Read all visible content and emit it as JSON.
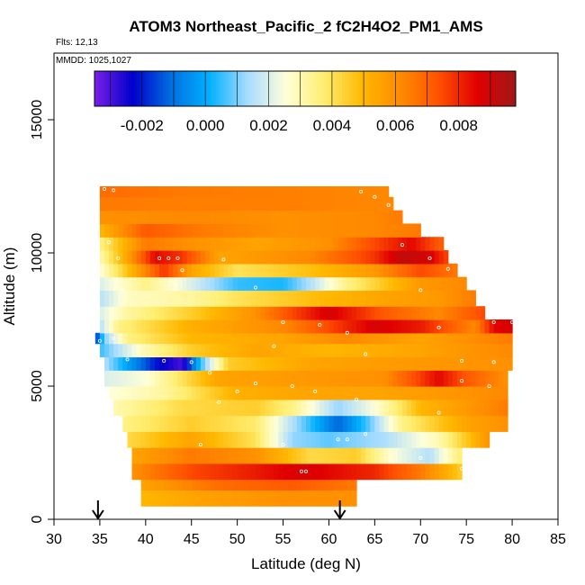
{
  "chart_data": {
    "type": "heatmap",
    "title": "ATOM3 Northeast_Pacific_2 fC2H4O2_PM1_AMS",
    "annotations": [
      "Flts: 12,13",
      "MMDD: 1025,1027"
    ],
    "xlabel": "Latitude (deg N)",
    "ylabel": "Altitude (m)",
    "xlim": [
      30,
      85
    ],
    "ylim": [
      0,
      17500
    ],
    "x_ticks": [
      "30",
      "35",
      "40",
      "45",
      "50",
      "55",
      "60",
      "65",
      "70",
      "75",
      "80",
      "85"
    ],
    "y_ticks": [
      "0",
      "5000",
      "10000",
      "15000"
    ],
    "colorbar": {
      "range": [
        -0.0035,
        0.0098
      ],
      "tick_values": [
        -0.002,
        0.0,
        0.002,
        0.004,
        0.006,
        0.008
      ],
      "tick_labels": [
        "-0.002",
        "0.000",
        "0.002",
        "0.004",
        "0.006",
        "0.008"
      ],
      "colors": [
        "#7a1fe8",
        "#0000cc",
        "#0070e0",
        "#00b0ff",
        "#a8dcff",
        "#ffffd8",
        "#ffee70",
        "#ffb800",
        "#ff8a00",
        "#ff5000",
        "#e00000",
        "#a01818"
      ]
    },
    "arrow_latitudes": [
      34.8,
      61.2
    ],
    "bands": [
      {
        "y0": 500,
        "y1": 1100,
        "x0": 39.5,
        "x1": 63,
        "keys": [
          [
            39.5,
            0.005
          ],
          [
            45,
            0.0055
          ],
          [
            55,
            0.006
          ],
          [
            63,
            0.006
          ]
        ]
      },
      {
        "y0": 1100,
        "y1": 1500,
        "x0": 39.5,
        "x1": 63,
        "keys": [
          [
            39.5,
            0.0055
          ],
          [
            48,
            0.0068
          ],
          [
            56,
            0.0072
          ],
          [
            63,
            0.0065
          ]
        ]
      },
      {
        "y0": 1500,
        "y1": 2100,
        "x0": 38.5,
        "x1": 74.5,
        "keys": [
          [
            38.5,
            0.006
          ],
          [
            45,
            0.0075
          ],
          [
            52,
            0.0082
          ],
          [
            57,
            0.0088
          ],
          [
            65,
            0.008
          ],
          [
            70,
            0.0065
          ],
          [
            74.5,
            0.0045
          ]
        ]
      },
      {
        "y0": 2100,
        "y1": 2700,
        "x0": 38.5,
        "x1": 74.5,
        "keys": [
          [
            38.5,
            0.0055
          ],
          [
            45,
            0.0065
          ],
          [
            52,
            0.006
          ],
          [
            58,
            0.0042
          ],
          [
            63,
            0.0045
          ],
          [
            67,
            0.0025
          ],
          [
            71,
            0.0015
          ],
          [
            74.5,
            0.0038
          ]
        ]
      },
      {
        "y0": 2700,
        "y1": 3300,
        "x0": 38.0,
        "x1": 77.5,
        "keys": [
          [
            38,
            0.0042
          ],
          [
            45,
            0.0055
          ],
          [
            52,
            0.004
          ],
          [
            56,
            0.0012
          ],
          [
            60,
            0.0008
          ],
          [
            66,
            0.0014
          ],
          [
            72,
            0.003
          ],
          [
            77.5,
            0.006
          ]
        ]
      },
      {
        "y0": 3300,
        "y1": 3900,
        "x0": 37.5,
        "x1": 79.5,
        "keys": [
          [
            37.5,
            0.0035
          ],
          [
            45,
            0.0045
          ],
          [
            52,
            0.0038
          ],
          [
            56,
            0.0015
          ],
          [
            61,
            -0.0012
          ],
          [
            64,
            0.0005
          ],
          [
            68,
            0.0035
          ],
          [
            75,
            0.0055
          ],
          [
            79.5,
            0.006
          ]
        ]
      },
      {
        "y0": 3900,
        "y1": 4500,
        "x0": 36.5,
        "x1": 79.5,
        "keys": [
          [
            36.5,
            0.003
          ],
          [
            44,
            0.0042
          ],
          [
            52,
            0.0045
          ],
          [
            56,
            0.0035
          ],
          [
            61,
            0.0012
          ],
          [
            65,
            0.0025
          ],
          [
            70,
            0.005
          ],
          [
            79.5,
            0.0065
          ]
        ]
      },
      {
        "y0": 4500,
        "y1": 5000,
        "x0": 36.0,
        "x1": 79.5,
        "keys": [
          [
            36,
            0.0025
          ],
          [
            42,
            0.0032
          ],
          [
            50,
            0.0052
          ],
          [
            58,
            0.0055
          ],
          [
            66,
            0.0055
          ],
          [
            72,
            0.0058
          ],
          [
            79.5,
            0.0062
          ]
        ]
      },
      {
        "y0": 5000,
        "y1": 5600,
        "x0": 35.5,
        "x1": 79.5,
        "keys": [
          [
            35.5,
            0.002
          ],
          [
            40,
            0.0025
          ],
          [
            48,
            0.0055
          ],
          [
            58,
            0.0058
          ],
          [
            66,
            0.006
          ],
          [
            72,
            0.0085
          ],
          [
            75,
            0.0072
          ],
          [
            79.5,
            0.006
          ]
        ]
      },
      {
        "y0": 5600,
        "y1": 6100,
        "x0": 35.5,
        "x1": 80.0,
        "keys": [
          [
            35.5,
            0.0015
          ],
          [
            37,
            0.0005
          ],
          [
            41,
            -0.002
          ],
          [
            44,
            -0.003
          ],
          [
            46,
            0.0005
          ],
          [
            49,
            0.0045
          ],
          [
            58,
            0.0055
          ],
          [
            70,
            0.0058
          ],
          [
            80,
            0.006
          ]
        ]
      },
      {
        "y0": 6100,
        "y1": 6600,
        "x0": 35.0,
        "x1": 80.0,
        "keys": [
          [
            35,
            0.0005
          ],
          [
            37,
            0.0015
          ],
          [
            40,
            0.003
          ],
          [
            45,
            0.0045
          ],
          [
            52,
            0.0055
          ],
          [
            60,
            0.005
          ],
          [
            70,
            0.0055
          ],
          [
            80,
            0.0062
          ]
        ]
      },
      {
        "y0": 6600,
        "y1": 7000,
        "x0": 34.5,
        "x1": 80.0,
        "keys": [
          [
            34.5,
            -0.002
          ],
          [
            35.5,
            0.001
          ],
          [
            38,
            0.0035
          ],
          [
            45,
            0.005
          ],
          [
            55,
            0.0055
          ],
          [
            62,
            0.0062
          ],
          [
            70,
            0.0055
          ],
          [
            80,
            0.0065
          ]
        ]
      },
      {
        "y0": 7000,
        "y1": 7500,
        "x0": 35.0,
        "x1": 80.0,
        "keys": [
          [
            35,
            0.0015
          ],
          [
            37,
            0.0035
          ],
          [
            45,
            0.0052
          ],
          [
            55,
            0.0062
          ],
          [
            60,
            0.0075
          ],
          [
            65,
            0.0088
          ],
          [
            70,
            0.0082
          ],
          [
            76,
            0.0062
          ],
          [
            78,
            0.0085
          ],
          [
            80,
            0.0088
          ]
        ]
      },
      {
        "y0": 7500,
        "y1": 8000,
        "x0": 35.0,
        "x1": 77.0,
        "keys": [
          [
            35,
            0.002
          ],
          [
            38,
            0.0032
          ],
          [
            45,
            0.0045
          ],
          [
            52,
            0.006
          ],
          [
            56,
            0.0075
          ],
          [
            60,
            0.0088
          ],
          [
            66,
            0.0072
          ],
          [
            72,
            0.0062
          ],
          [
            77,
            0.0075
          ]
        ]
      },
      {
        "y0": 8000,
        "y1": 8600,
        "x0": 35.0,
        "x1": 76.0,
        "keys": [
          [
            35,
            0.0015
          ],
          [
            38,
            0.0028
          ],
          [
            45,
            0.0032
          ],
          [
            50,
            0.004
          ],
          [
            58,
            0.0048
          ],
          [
            66,
            0.0055
          ],
          [
            72,
            0.0058
          ],
          [
            76,
            0.0065
          ]
        ]
      },
      {
        "y0": 8600,
        "y1": 9100,
        "x0": 35.0,
        "x1": 75.0,
        "keys": [
          [
            35,
            0.002
          ],
          [
            40,
            0.0035
          ],
          [
            45,
            0.002
          ],
          [
            50,
            0.0005
          ],
          [
            55,
            0.0003
          ],
          [
            58,
            0.0015
          ],
          [
            62,
            0.0035
          ],
          [
            70,
            0.0058
          ],
          [
            75,
            0.0062
          ]
        ]
      },
      {
        "y0": 9100,
        "y1": 9600,
        "x0": 35.0,
        "x1": 74.0,
        "keys": [
          [
            35,
            0.0025
          ],
          [
            39,
            0.0055
          ],
          [
            42,
            0.0078
          ],
          [
            45,
            0.0055
          ],
          [
            50,
            0.004
          ],
          [
            58,
            0.0048
          ],
          [
            65,
            0.0058
          ],
          [
            70,
            0.0075
          ],
          [
            74,
            0.0065
          ]
        ]
      },
      {
        "y0": 9600,
        "y1": 10100,
        "x0": 35.0,
        "x1": 73.0,
        "keys": [
          [
            35,
            0.003
          ],
          [
            38,
            0.0055
          ],
          [
            41,
            0.0085
          ],
          [
            44,
            0.0078
          ],
          [
            48,
            0.0055
          ],
          [
            58,
            0.0062
          ],
          [
            65,
            0.0078
          ],
          [
            68,
            0.0092
          ],
          [
            71,
            0.0088
          ],
          [
            73,
            0.0075
          ]
        ]
      },
      {
        "y0": 10100,
        "y1": 10600,
        "x0": 35.0,
        "x1": 72.5,
        "keys": [
          [
            35,
            0.0035
          ],
          [
            40,
            0.0065
          ],
          [
            45,
            0.006
          ],
          [
            52,
            0.0055
          ],
          [
            60,
            0.006
          ],
          [
            65,
            0.0075
          ],
          [
            69,
            0.0085
          ],
          [
            72.5,
            0.007
          ]
        ]
      },
      {
        "y0": 10600,
        "y1": 11100,
        "x0": 35.0,
        "x1": 70.0,
        "keys": [
          [
            35,
            0.005
          ],
          [
            40,
            0.0072
          ],
          [
            46,
            0.0065
          ],
          [
            55,
            0.006
          ],
          [
            65,
            0.0062
          ],
          [
            70,
            0.0065
          ]
        ]
      },
      {
        "y0": 11100,
        "y1": 11600,
        "x0": 35.0,
        "x1": 68.0,
        "keys": [
          [
            35,
            0.006
          ],
          [
            45,
            0.0062
          ],
          [
            55,
            0.006
          ],
          [
            65,
            0.0062
          ],
          [
            68,
            0.0065
          ]
        ]
      },
      {
        "y0": 11600,
        "y1": 12100,
        "x0": 35.0,
        "x1": 67.0,
        "keys": [
          [
            35,
            0.0065
          ],
          [
            45,
            0.0064
          ],
          [
            55,
            0.0064
          ],
          [
            67,
            0.0062
          ]
        ]
      },
      {
        "y0": 12100,
        "y1": 12500,
        "x0": 35.0,
        "x1": 66.5,
        "keys": [
          [
            35,
            0.0068
          ],
          [
            45,
            0.0065
          ],
          [
            55,
            0.0064
          ],
          [
            66.5,
            0.0062
          ]
        ]
      }
    ],
    "sample_points": [
      [
        35.5,
        12400
      ],
      [
        36.5,
        12350
      ],
      [
        63.5,
        12300
      ],
      [
        65,
        12100
      ],
      [
        66.5,
        11800
      ],
      [
        36,
        10400
      ],
      [
        41.5,
        9800
      ],
      [
        42.5,
        9800
      ],
      [
        43.5,
        9800
      ],
      [
        37,
        9800
      ],
      [
        48.5,
        9750
      ],
      [
        44,
        9350
      ],
      [
        68,
        10300
      ],
      [
        71,
        9800
      ],
      [
        73,
        9400
      ],
      [
        37.5,
        8600
      ],
      [
        52,
        8700
      ],
      [
        70,
        8600
      ],
      [
        55,
        7400
      ],
      [
        59,
        7300
      ],
      [
        62,
        7000
      ],
      [
        72,
        7200
      ],
      [
        78,
        7400
      ],
      [
        80,
        7400
      ],
      [
        35,
        6700
      ],
      [
        36.5,
        6800
      ],
      [
        38,
        6000
      ],
      [
        42,
        5950
      ],
      [
        45,
        5900
      ],
      [
        54,
        6500
      ],
      [
        64,
        6200
      ],
      [
        74.5,
        5950
      ],
      [
        78,
        5900
      ],
      [
        47,
        5500
      ],
      [
        52,
        5100
      ],
      [
        56,
        5000
      ],
      [
        74.5,
        5200
      ],
      [
        77.5,
        5000
      ],
      [
        50,
        4800
      ],
      [
        58.5,
        4800
      ],
      [
        63,
        4500
      ],
      [
        48,
        4400
      ],
      [
        72,
        4000
      ],
      [
        61,
        3000
      ],
      [
        62,
        3000
      ],
      [
        64,
        3200
      ],
      [
        55,
        2800
      ],
      [
        57,
        1800
      ],
      [
        57.5,
        1800
      ],
      [
        74.5,
        1900
      ],
      [
        39,
        400
      ],
      [
        46,
        2800
      ],
      [
        70,
        2300
      ]
    ]
  }
}
